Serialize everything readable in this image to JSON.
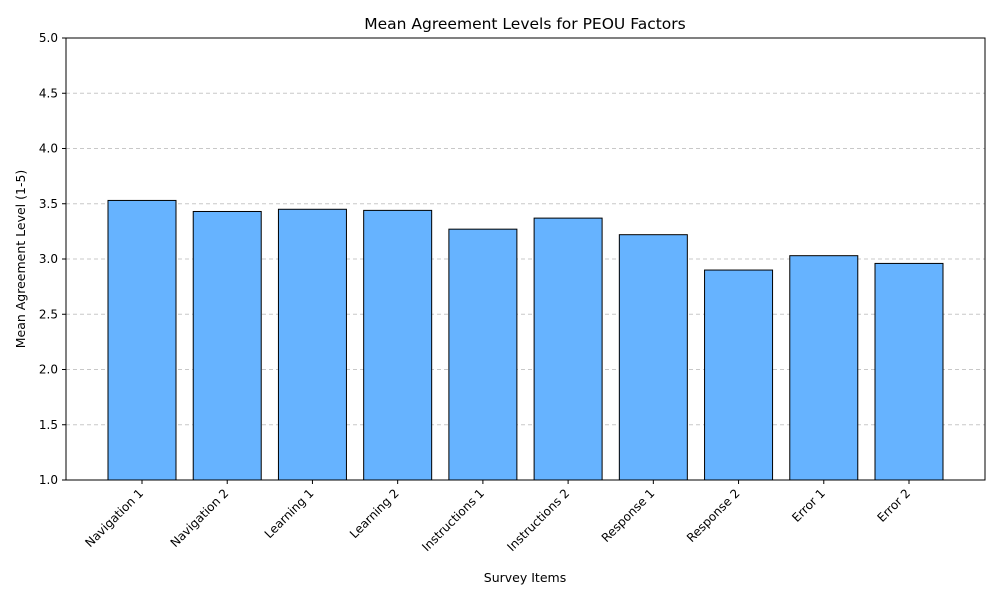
{
  "chart_data": {
    "type": "bar",
    "title": "Mean Agreement Levels for PEOU Factors",
    "xlabel": "Survey Items",
    "ylabel": "Mean Agreement Level (1-5)",
    "categories": [
      "Navigation 1",
      "Navigation 2",
      "Learning 1",
      "Learning 2",
      "Instructions 1",
      "Instructions 2",
      "Response 1",
      "Response 2",
      "Error 1",
      "Error 2"
    ],
    "values": [
      3.53,
      3.43,
      3.45,
      3.44,
      3.27,
      3.37,
      3.22,
      2.9,
      3.03,
      2.96
    ],
    "ylim": [
      1.0,
      5.0
    ],
    "yticks": [
      "1.0",
      "1.5",
      "2.0",
      "2.5",
      "3.0",
      "3.5",
      "4.0",
      "4.5",
      "5.0"
    ],
    "grid": "horizontal dashed",
    "bar_color": "#66b3ff",
    "bar_edge_color": "#000000",
    "grid_color": "#c8c8c8"
  }
}
